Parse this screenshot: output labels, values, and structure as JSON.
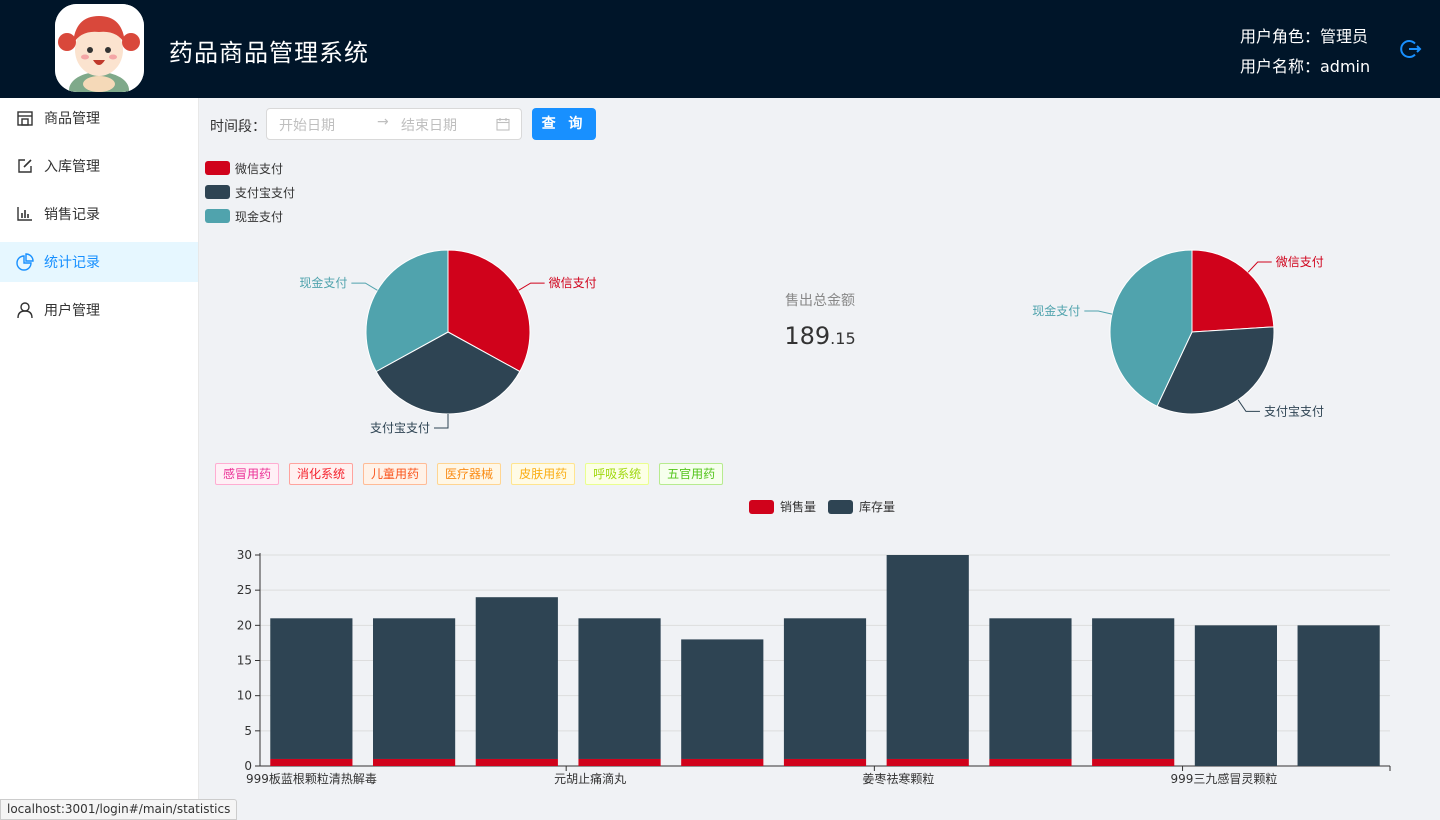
{
  "header": {
    "title": "药品商品管理系统",
    "role_text": "用户角色：管理员",
    "name_text": "用户名称：admin"
  },
  "sidebar": {
    "items": [
      {
        "label": "商品管理",
        "icon": "shop-icon"
      },
      {
        "label": "入库管理",
        "icon": "edit-icon"
      },
      {
        "label": "销售记录",
        "icon": "bar-chart-icon"
      },
      {
        "label": "统计记录",
        "icon": "pie-chart-icon",
        "active": true
      },
      {
        "label": "用户管理",
        "icon": "user-icon"
      }
    ]
  },
  "filter": {
    "label": "时间段：",
    "start_placeholder": "开始日期",
    "end_placeholder": "结束日期",
    "arrow": "→",
    "query_label": "查 询"
  },
  "summary": {
    "label": "售出总金额",
    "integer": "189",
    "decimal": ".15"
  },
  "tags": [
    {
      "label": "感冒用药",
      "color": "#eb2f96",
      "bg": "#fff0f6",
      "border": "#ffadd2"
    },
    {
      "label": "消化系统",
      "color": "#f5222d",
      "bg": "#fff1f0",
      "border": "#ffa39e"
    },
    {
      "label": "儿童用药",
      "color": "#fa541c",
      "bg": "#fff2e8",
      "border": "#ffbb96"
    },
    {
      "label": "医疗器械",
      "color": "#fa8c16",
      "bg": "#fff7e6",
      "border": "#ffd591"
    },
    {
      "label": "皮肤用药",
      "color": "#faad14",
      "bg": "#fffbe6",
      "border": "#ffe58f"
    },
    {
      "label": "呼吸系统",
      "color": "#a0d911",
      "bg": "#fcffe6",
      "border": "#eaff8f"
    },
    {
      "label": "五官用药",
      "color": "#52c41a",
      "bg": "#f6ffed",
      "border": "#b7eb8f"
    }
  ],
  "colors": {
    "wechat": "#d0021b",
    "alipay": "#2e4453",
    "cash": "#50a3ad",
    "header_bg": "#001529",
    "accent": "#1890ff"
  },
  "status_bar": "localhost:3001/login#/main/statistics",
  "chart_data": [
    {
      "type": "pie",
      "legend": [
        "微信支付",
        "支付宝支付",
        "现金支付"
      ],
      "slices": [
        {
          "name": "微信支付",
          "value": 33
        },
        {
          "name": "支付宝支付",
          "value": 34
        },
        {
          "name": "现金支付",
          "value": 33
        }
      ]
    },
    {
      "type": "pie",
      "slices": [
        {
          "name": "微信支付",
          "value": 24
        },
        {
          "name": "支付宝支付",
          "value": 33
        },
        {
          "name": "现金支付",
          "value": 43
        }
      ]
    },
    {
      "type": "bar",
      "legend": [
        "销售量",
        "库存量"
      ],
      "categories": [
        "999板蓝根颗粒清热解毒",
        "",
        "",
        "元胡止痛滴丸",
        "",
        "",
        "姜枣祛寒颗粒",
        "",
        "",
        "999三九感冒灵颗粒",
        ""
      ],
      "series": [
        {
          "name": "销售量",
          "values": [
            1,
            1,
            1,
            1,
            1,
            1,
            1,
            1,
            1,
            0,
            0
          ]
        },
        {
          "name": "库存量",
          "values": [
            20,
            20,
            23,
            20,
            17,
            20,
            29,
            20,
            20,
            20,
            20
          ]
        }
      ],
      "ylim": [
        0,
        30
      ],
      "yticks": [
        0,
        5,
        10,
        15,
        20,
        25,
        30
      ],
      "stacked": true,
      "grid": true,
      "legend_position": "top-center"
    }
  ]
}
